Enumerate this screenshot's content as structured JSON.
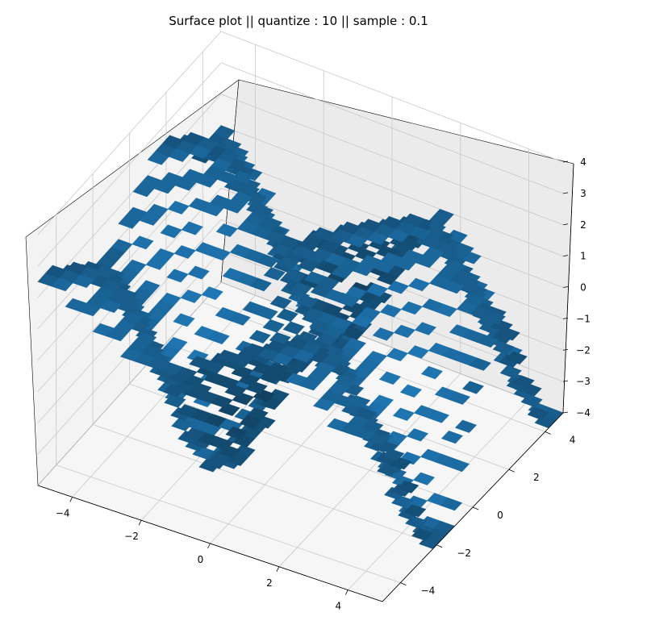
{
  "chart_data": {
    "type": "surface3d",
    "title": "Surface plot || quantize : 10 || sample : 0.1",
    "x_ticks": [
      "−4",
      "−2",
      "0",
      "2",
      "4"
    ],
    "y_ticks": [
      "−4",
      "−2",
      "0",
      "2",
      "4"
    ],
    "z_ticks": [
      "−4",
      "−3",
      "−2",
      "−1",
      "0",
      "1",
      "2",
      "3",
      "4"
    ],
    "xlim": [
      -5,
      5
    ],
    "ylim": [
      -5,
      5
    ],
    "zlim": [
      -4,
      4
    ],
    "x_range": [
      -5,
      4.9
    ],
    "y_range": [
      -5,
      4.9
    ],
    "sample": 0.1,
    "quantize": 10,
    "grid": true,
    "colors": {
      "surface": "#1f77b4",
      "pane_left": "#f4f4f4",
      "pane_right": "#ececec",
      "floor": "#f7f7f7",
      "grid": "#c8c8c8",
      "edge": "#000000"
    }
  }
}
